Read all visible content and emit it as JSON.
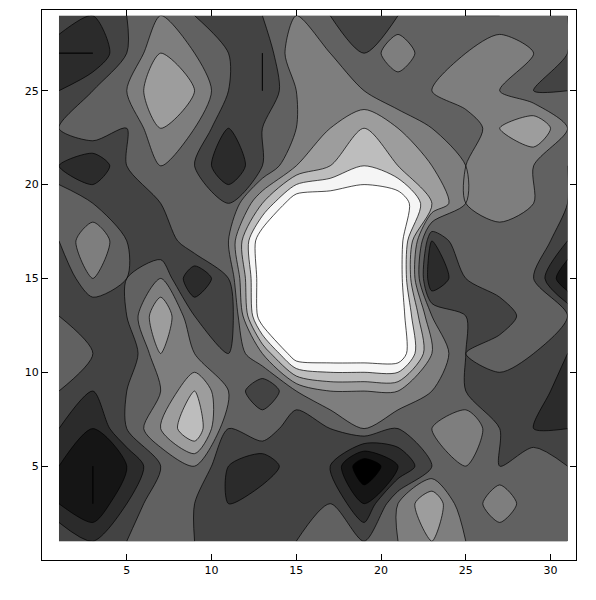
{
  "chart_data": {
    "type": "contour",
    "x": [
      1,
      3,
      5,
      7,
      9,
      11,
      13,
      15,
      17,
      19,
      21,
      23,
      25,
      27,
      29,
      31
    ],
    "y": [
      1,
      3,
      5,
      7,
      9,
      11,
      13,
      15,
      17,
      19,
      21,
      23,
      25,
      27,
      29
    ],
    "cells": [
      [
        4,
        3,
        4,
        5,
        4,
        4,
        3,
        4,
        5,
        4,
        5,
        6,
        5,
        4,
        5,
        4
      ],
      [
        2,
        1,
        3,
        5,
        4,
        3,
        4,
        3,
        4,
        2,
        5,
        7,
        4,
        6,
        4,
        5
      ],
      [
        2,
        1,
        2,
        4,
        5,
        3,
        2,
        4,
        3,
        0,
        2,
        4,
        5,
        4,
        5,
        4
      ],
      [
        3,
        2,
        4,
        6,
        8,
        4,
        5,
        3,
        4,
        5,
        4,
        5,
        6,
        4,
        3,
        3
      ],
      [
        4,
        3,
        4,
        5,
        7,
        5,
        3,
        5,
        6,
        6,
        6,
        5,
        4,
        3,
        4,
        2
      ],
      [
        5,
        4,
        3,
        6,
        5,
        4,
        6,
        10,
        10,
        10,
        10,
        6,
        4,
        5,
        4,
        3
      ],
      [
        4,
        3,
        4,
        7,
        4,
        3,
        10,
        10,
        10,
        10,
        10,
        5,
        4,
        3,
        5,
        4
      ],
      [
        3,
        5,
        4,
        5,
        2,
        4,
        10,
        10,
        10,
        10,
        10,
        2,
        4,
        5,
        4,
        1
      ],
      [
        4,
        6,
        4,
        3,
        5,
        5,
        10,
        10,
        10,
        10,
        10,
        3,
        5,
        4,
        5,
        3
      ],
      [
        5,
        4,
        3,
        4,
        5,
        4,
        7,
        10,
        10,
        10,
        10,
        7,
        5,
        6,
        5,
        4
      ],
      [
        3,
        2,
        4,
        5,
        4,
        2,
        4,
        6,
        7,
        8,
        7,
        6,
        5,
        6,
        5,
        4
      ],
      [
        4,
        5,
        4,
        6,
        5,
        3,
        4,
        5,
        6,
        7,
        6,
        5,
        4,
        6,
        7,
        5
      ],
      [
        3,
        4,
        5,
        7,
        6,
        4,
        3,
        5,
        6,
        5,
        4,
        5,
        6,
        5,
        4,
        4
      ],
      [
        2,
        2,
        4,
        6,
        5,
        4,
        3,
        6,
        5,
        4,
        6,
        4,
        5,
        6,
        5,
        4
      ],
      [
        4,
        3,
        4,
        5,
        4,
        3,
        4,
        5,
        4,
        3,
        4,
        5,
        4,
        4,
        5,
        4
      ]
    ],
    "levels": [
      1,
      2,
      3,
      4,
      5,
      6,
      7,
      8,
      9
    ],
    "zlim": [
      0,
      10
    ],
    "xlim": [
      0,
      31.5
    ],
    "ylim": [
      0,
      29.3
    ],
    "xticks": [
      5,
      10,
      15,
      20,
      25,
      30
    ],
    "yticks": [
      5,
      10,
      15,
      20,
      25
    ]
  }
}
